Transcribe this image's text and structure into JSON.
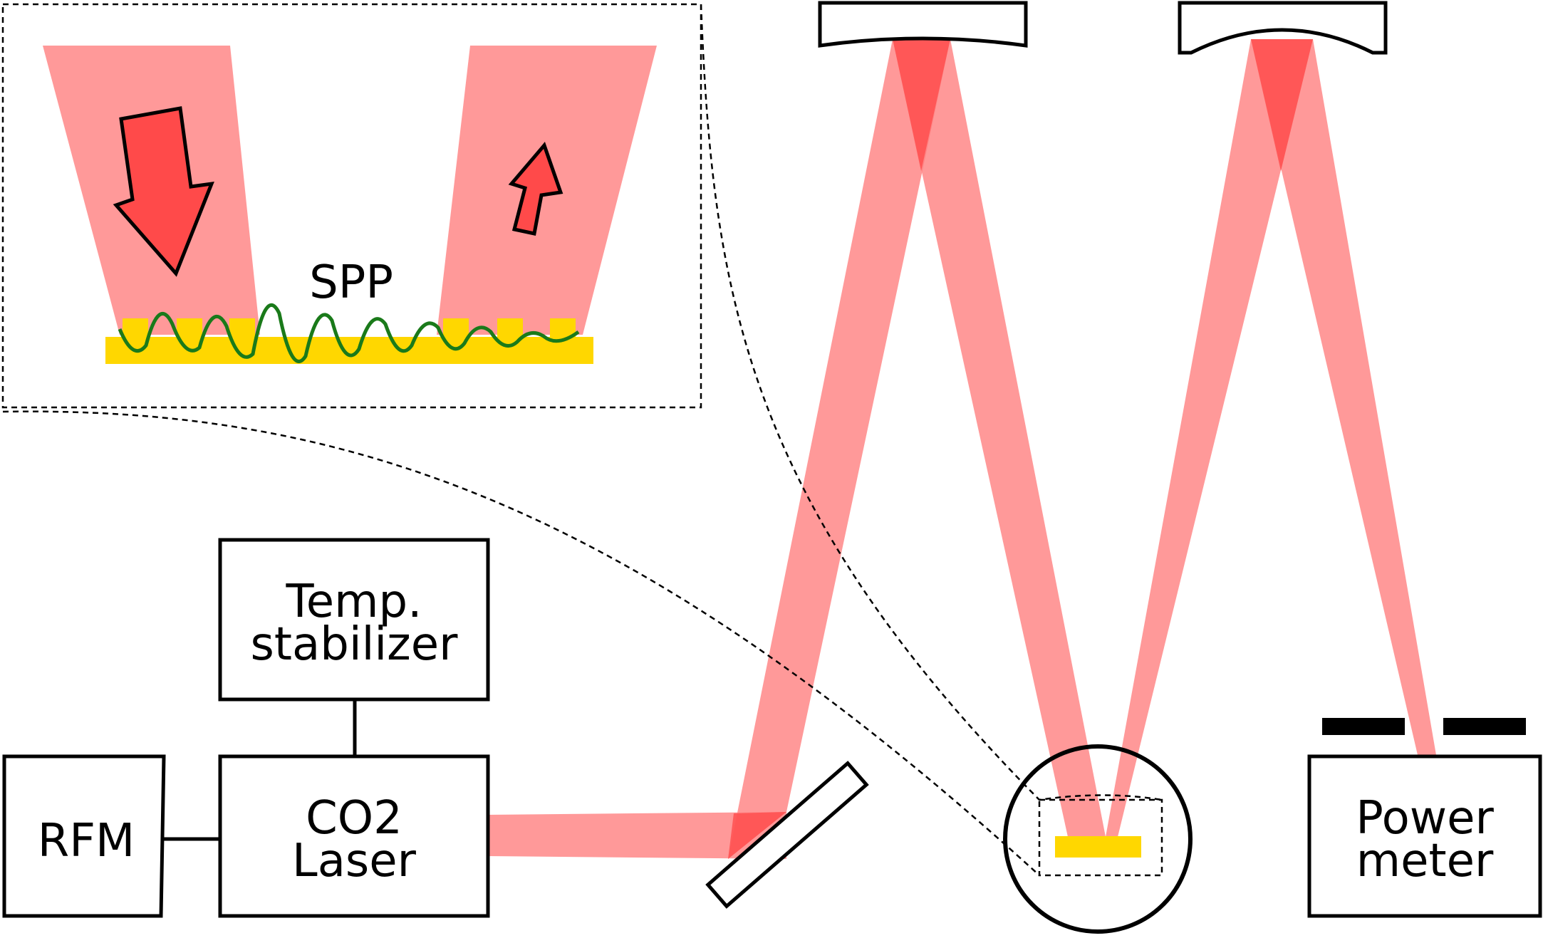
{
  "labels": {
    "rfm": "RFM",
    "temp_line1": "Temp.",
    "temp_line2": "stabilizer",
    "laser_line1": "CO2",
    "laser_line2": "Laser",
    "power_line1": "Power",
    "power_line2": "meter",
    "spp": "SPP"
  },
  "colors": {
    "beam": "#ff8080",
    "beam_overlap": "#ff4848",
    "gold": "#ffd700",
    "wave": "#1a7a1a",
    "arrow": "#ff4a4a",
    "outline": "#000000"
  }
}
